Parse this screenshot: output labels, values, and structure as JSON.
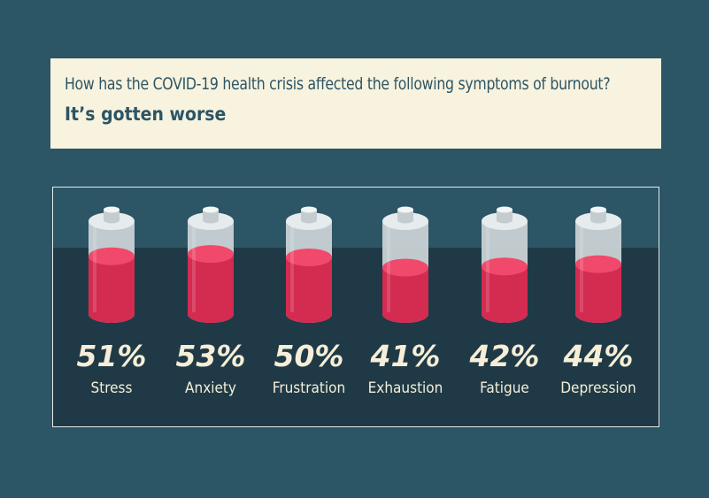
{
  "header": {
    "question": "How has the COVID-19 health crisis affected the following symptoms of burnout?",
    "answer": "It’s gotten worse"
  },
  "colors": {
    "background": "#2c5565",
    "panel_dark": "#1f3a46",
    "header_bg": "#f8f3df",
    "fill": "#d42b51",
    "fill_top": "#f0496b",
    "text_light": "#f6eed8"
  },
  "chart_data": {
    "type": "bar",
    "categories": [
      "Stress",
      "Anxiety",
      "Frustration",
      "Exhaustion",
      "Fatigue",
      "Depression"
    ],
    "values": [
      51,
      53,
      50,
      41,
      42,
      44
    ],
    "value_labels": [
      "51%",
      "53%",
      "50%",
      "41%",
      "42%",
      "44%"
    ],
    "ylim": [
      0,
      100
    ]
  }
}
